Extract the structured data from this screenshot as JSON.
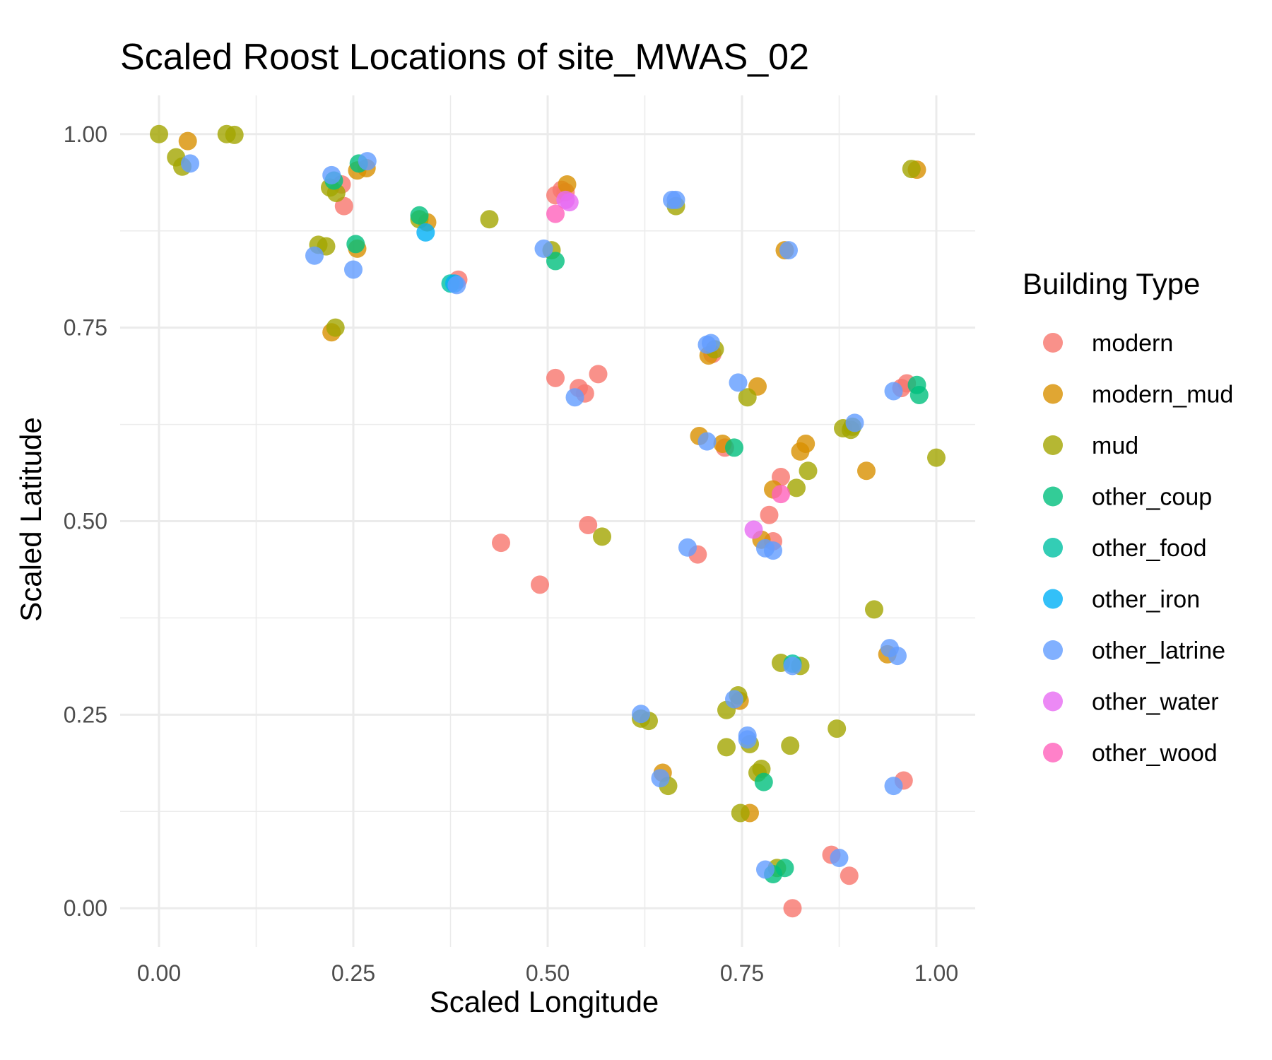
{
  "chart_data": {
    "type": "scatter",
    "title": "Scaled Roost Locations of site_MWAS_02",
    "xlabel": "Scaled Longitude",
    "ylabel": "Scaled Latitude",
    "xlim": [
      -0.05,
      1.05
    ],
    "ylim": [
      -0.05,
      1.05
    ],
    "x_ticks": [
      0,
      0.25,
      0.5,
      0.75,
      1
    ],
    "x_tick_labels": [
      "0.00",
      "0.25",
      "0.50",
      "0.75",
      "1.00"
    ],
    "y_ticks": [
      0,
      0.25,
      0.5,
      0.75,
      1
    ],
    "y_tick_labels": [
      "0.00",
      "0.25",
      "0.50",
      "0.75",
      "1.00"
    ],
    "grid": true,
    "legend": {
      "title": "Building Type",
      "position": "right"
    },
    "series": [
      {
        "name": "modern",
        "color": "#F8766D",
        "points": [
          [
            0.235,
            0.935
          ],
          [
            0.238,
            0.907
          ],
          [
            0.385,
            0.812
          ],
          [
            0.51,
            0.921
          ],
          [
            0.518,
            0.928
          ],
          [
            0.523,
            0.925
          ],
          [
            0.51,
            0.685
          ],
          [
            0.54,
            0.672
          ],
          [
            0.548,
            0.665
          ],
          [
            0.565,
            0.69
          ],
          [
            0.44,
            0.472
          ],
          [
            0.49,
            0.418
          ],
          [
            0.552,
            0.495
          ],
          [
            0.693,
            0.457
          ],
          [
            0.728,
            0.595
          ],
          [
            0.712,
            0.716
          ],
          [
            0.8,
            0.557
          ],
          [
            0.785,
            0.508
          ],
          [
            0.79,
            0.474
          ],
          [
            0.955,
            0.672
          ],
          [
            0.962,
            0.678
          ],
          [
            0.958,
            0.165
          ],
          [
            0.865,
            0.069
          ],
          [
            0.888,
            0.042
          ],
          [
            0.815,
            0.0
          ]
        ]
      },
      {
        "name": "modern_mud",
        "color": "#D89000",
        "points": [
          [
            0.037,
            0.991
          ],
          [
            0.255,
            0.953
          ],
          [
            0.267,
            0.956
          ],
          [
            0.255,
            0.852
          ],
          [
            0.345,
            0.886
          ],
          [
            0.222,
            0.744
          ],
          [
            0.525,
            0.935
          ],
          [
            0.707,
            0.714
          ],
          [
            0.77,
            0.674
          ],
          [
            0.695,
            0.61
          ],
          [
            0.725,
            0.6
          ],
          [
            0.775,
            0.476
          ],
          [
            0.79,
            0.541
          ],
          [
            0.825,
            0.59
          ],
          [
            0.832,
            0.6
          ],
          [
            0.91,
            0.565
          ],
          [
            0.805,
            0.85
          ],
          [
            0.975,
            0.954
          ],
          [
            0.937,
            0.328
          ],
          [
            0.747,
            0.268
          ],
          [
            0.648,
            0.175
          ],
          [
            0.76,
            0.123
          ]
        ]
      },
      {
        "name": "mud",
        "color": "#A3A500",
        "points": [
          [
            0.0,
            1.0
          ],
          [
            0.022,
            0.97
          ],
          [
            0.03,
            0.958
          ],
          [
            0.087,
            1.0
          ],
          [
            0.097,
            0.999
          ],
          [
            0.22,
            0.931
          ],
          [
            0.228,
            0.924
          ],
          [
            0.205,
            0.857
          ],
          [
            0.215,
            0.855
          ],
          [
            0.227,
            0.75
          ],
          [
            0.335,
            0.89
          ],
          [
            0.425,
            0.89
          ],
          [
            0.505,
            0.85
          ],
          [
            0.665,
            0.907
          ],
          [
            0.715,
            0.722
          ],
          [
            0.757,
            0.66
          ],
          [
            0.57,
            0.48
          ],
          [
            0.82,
            0.543
          ],
          [
            0.835,
            0.565
          ],
          [
            0.88,
            0.62
          ],
          [
            0.89,
            0.618
          ],
          [
            0.892,
            0.622
          ],
          [
            1.0,
            0.582
          ],
          [
            0.968,
            0.955
          ],
          [
            0.92,
            0.386
          ],
          [
            0.8,
            0.317
          ],
          [
            0.825,
            0.313
          ],
          [
            0.745,
            0.275
          ],
          [
            0.73,
            0.256
          ],
          [
            0.62,
            0.245
          ],
          [
            0.63,
            0.242
          ],
          [
            0.73,
            0.208
          ],
          [
            0.76,
            0.212
          ],
          [
            0.812,
            0.21
          ],
          [
            0.77,
            0.175
          ],
          [
            0.775,
            0.18
          ],
          [
            0.872,
            0.232
          ],
          [
            0.655,
            0.158
          ],
          [
            0.748,
            0.123
          ],
          [
            0.795,
            0.052
          ]
        ]
      },
      {
        "name": "other_coup",
        "color": "#00BF7D",
        "points": [
          [
            0.225,
            0.94
          ],
          [
            0.257,
            0.962
          ],
          [
            0.253,
            0.858
          ],
          [
            0.335,
            0.895
          ],
          [
            0.51,
            0.836
          ],
          [
            0.74,
            0.595
          ],
          [
            0.975,
            0.676
          ],
          [
            0.978,
            0.663
          ],
          [
            0.778,
            0.163
          ],
          [
            0.79,
            0.044
          ],
          [
            0.805,
            0.052
          ]
        ]
      },
      {
        "name": "other_food",
        "color": "#00C1A3",
        "points": [
          [
            0.375,
            0.807
          ],
          [
            0.815,
            0.316
          ]
        ]
      },
      {
        "name": "other_iron",
        "color": "#00B0F6",
        "points": [
          [
            0.343,
            0.873
          ],
          [
            0.38,
            0.807
          ]
        ]
      },
      {
        "name": "other_latrine",
        "color": "#619CFF",
        "points": [
          [
            0.04,
            0.962
          ],
          [
            0.222,
            0.947
          ],
          [
            0.268,
            0.965
          ],
          [
            0.2,
            0.843
          ],
          [
            0.25,
            0.825
          ],
          [
            0.383,
            0.805
          ],
          [
            0.495,
            0.852
          ],
          [
            0.66,
            0.915
          ],
          [
            0.665,
            0.915
          ],
          [
            0.705,
            0.728
          ],
          [
            0.71,
            0.73
          ],
          [
            0.535,
            0.66
          ],
          [
            0.745,
            0.679
          ],
          [
            0.705,
            0.603
          ],
          [
            0.68,
            0.466
          ],
          [
            0.78,
            0.465
          ],
          [
            0.79,
            0.462
          ],
          [
            0.81,
            0.85
          ],
          [
            0.895,
            0.627
          ],
          [
            0.945,
            0.668
          ],
          [
            0.94,
            0.336
          ],
          [
            0.95,
            0.326
          ],
          [
            0.62,
            0.251
          ],
          [
            0.74,
            0.27
          ],
          [
            0.757,
            0.223
          ],
          [
            0.757,
            0.218
          ],
          [
            0.645,
            0.168
          ],
          [
            0.945,
            0.158
          ],
          [
            0.815,
            0.313
          ],
          [
            0.875,
            0.065
          ],
          [
            0.78,
            0.05
          ]
        ]
      },
      {
        "name": "other_water",
        "color": "#E76BF3",
        "points": [
          [
            0.528,
            0.912
          ],
          [
            0.523,
            0.915
          ],
          [
            0.765,
            0.489
          ]
        ]
      },
      {
        "name": "other_wood",
        "color": "#FF62BC",
        "points": [
          [
            0.51,
            0.897
          ],
          [
            0.8,
            0.535
          ]
        ]
      }
    ]
  }
}
